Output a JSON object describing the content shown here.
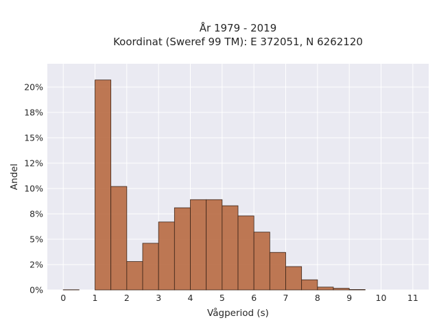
{
  "chart_data": {
    "type": "bar",
    "title_line1": "År 1979 - 2019",
    "title_line2": "Koordinat (Sweref 99 TM): E 372051, N 6262120",
    "xlabel": "Vågperiod (s)",
    "ylabel": "Andel",
    "xlim": [
      -0.5,
      11.5
    ],
    "ylim": [
      0,
      22.3
    ],
    "xticks": [
      "0",
      "1",
      "2",
      "3",
      "4",
      "5",
      "6",
      "7",
      "8",
      "9",
      "10",
      "11"
    ],
    "yticks": [
      {
        "value": 0,
        "label": "0%"
      },
      {
        "value": 2.5,
        "label": "2%"
      },
      {
        "value": 5,
        "label": "5%"
      },
      {
        "value": 7.5,
        "label": "8%"
      },
      {
        "value": 10,
        "label": "10%"
      },
      {
        "value": 12.5,
        "label": "12%"
      },
      {
        "value": 15,
        "label": "15%"
      },
      {
        "value": 17.5,
        "label": "18%"
      },
      {
        "value": 20,
        "label": "20%"
      }
    ],
    "bin_width": 0.5,
    "bins": [
      {
        "x": 0.0,
        "value": 0.02
      },
      {
        "x": 0.5,
        "value": 0.0
      },
      {
        "x": 1.0,
        "value": 20.7
      },
      {
        "x": 1.5,
        "value": 10.2
      },
      {
        "x": 2.0,
        "value": 2.8
      },
      {
        "x": 2.5,
        "value": 4.6
      },
      {
        "x": 3.0,
        "value": 6.7
      },
      {
        "x": 3.5,
        "value": 8.1
      },
      {
        "x": 4.0,
        "value": 8.9
      },
      {
        "x": 4.5,
        "value": 8.9
      },
      {
        "x": 5.0,
        "value": 8.3
      },
      {
        "x": 5.5,
        "value": 7.3
      },
      {
        "x": 6.0,
        "value": 5.7
      },
      {
        "x": 6.5,
        "value": 3.7
      },
      {
        "x": 7.0,
        "value": 2.3
      },
      {
        "x": 7.5,
        "value": 1.0
      },
      {
        "x": 8.0,
        "value": 0.28
      },
      {
        "x": 8.5,
        "value": 0.16
      },
      {
        "x": 9.0,
        "value": 0.04
      }
    ],
    "colors": {
      "bar": "#b86a41",
      "edge": "#3a2418",
      "background": "#eaeaf2",
      "grid": "#ffffff"
    },
    "grid": true
  }
}
